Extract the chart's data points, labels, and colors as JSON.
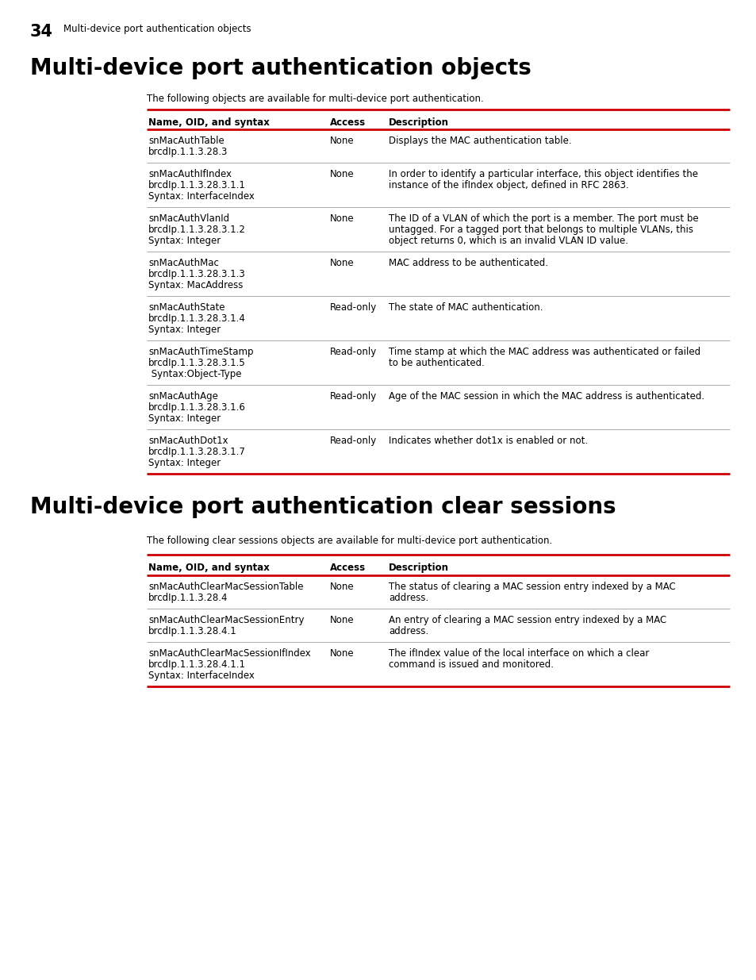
{
  "page_number": "34",
  "page_header": "Multi-device port authentication objects",
  "bg_color": "#ffffff",
  "section1_title": "Multi-device port authentication objects",
  "section1_intro": "The following objects are available for multi-device port authentication.",
  "section2_title": "Multi-device port authentication clear sessions",
  "section2_intro": "The following clear sessions objects are available for multi-device port authentication.",
  "red_color": "#cc0000",
  "divider_color": "#aaaaaa",
  "text_color": "#000000",
  "table1_rows": [
    {
      "name": [
        "snMacAuthTable",
        "brcdIp.1.1.3.28.3"
      ],
      "access": "None",
      "desc": [
        "Displays the MAC authentication table."
      ]
    },
    {
      "name": [
        "snMacAuthIfIndex",
        "brcdIp.1.1.3.28.3.1.1",
        "Syntax: InterfaceIndex"
      ],
      "access": "None",
      "desc": [
        "In order to identify a particular interface, this object identifies the",
        "instance of the ifIndex object, defined in RFC 2863."
      ]
    },
    {
      "name": [
        "snMacAuthVlanId",
        "brcdIp.1.1.3.28.3.1.2",
        "Syntax: Integer"
      ],
      "access": "None",
      "desc": [
        "The ID of a VLAN of which the port is a member. The port must be",
        "untagged. For a tagged port that belongs to multiple VLANs, this",
        "object returns 0, which is an invalid VLAN ID value."
      ]
    },
    {
      "name": [
        "snMacAuthMac",
        "brcdIp.1.1.3.28.3.1.3",
        "Syntax: MacAddress"
      ],
      "access": "None",
      "desc": [
        "MAC address to be authenticated."
      ]
    },
    {
      "name": [
        "snMacAuthState",
        "brcdIp.1.1.3.28.3.1.4",
        "Syntax: Integer"
      ],
      "access": "Read-only",
      "desc": [
        "The state of MAC authentication."
      ]
    },
    {
      "name": [
        "snMacAuthTimeStamp",
        "brcdIp.1.1.3.28.3.1.5",
        " Syntax:Object-Type"
      ],
      "access": "Read-only",
      "desc": [
        "Time stamp at which the MAC address was authenticated or failed",
        "to be authenticated."
      ]
    },
    {
      "name": [
        "snMacAuthAge",
        "brcdIp.1.1.3.28.3.1.6",
        "Syntax: Integer"
      ],
      "access": "Read-only",
      "desc": [
        "Age of the MAC session in which the MAC address is authenticated."
      ]
    },
    {
      "name": [
        "snMacAuthDot1x",
        "brcdIp.1.1.3.28.3.1.7",
        "Syntax: Integer"
      ],
      "access": "Read-only",
      "desc": [
        "Indicates whether dot1x is enabled or not."
      ]
    }
  ],
  "table2_rows": [
    {
      "name": [
        "snMacAuthClearMacSessionTable",
        "brcdIp.1.1.3.28.4"
      ],
      "access": "None",
      "desc": [
        "The status of clearing a MAC session entry indexed by a MAC",
        "address."
      ]
    },
    {
      "name": [
        "snMacAuthClearMacSessionEntry",
        "brcdIp.1.1.3.28.4.1"
      ],
      "access": "None",
      "desc": [
        "An entry of clearing a MAC session entry indexed by a MAC",
        "address."
      ]
    },
    {
      "name": [
        "snMacAuthClearMacSessionIfIndex",
        "brcdIp.1.1.3.28.4.1.1",
        "Syntax: InterfaceIndex"
      ],
      "access": "None",
      "desc": [
        "The ifIndex value of the local interface on which a clear",
        "command is issued and monitored."
      ]
    }
  ]
}
